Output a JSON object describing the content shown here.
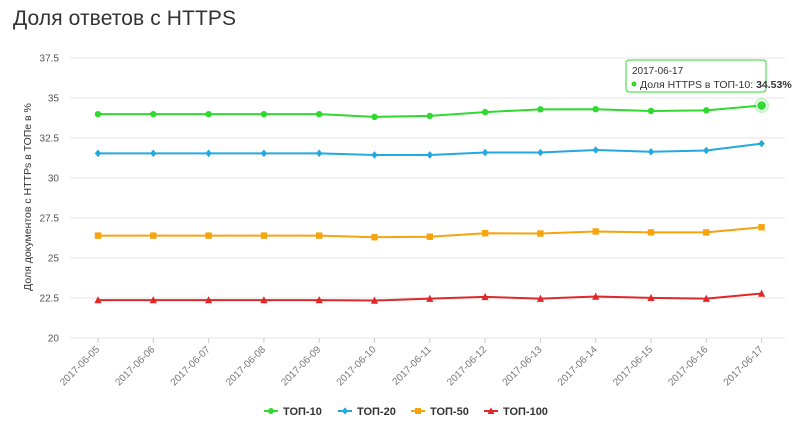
{
  "title": "Доля ответов с HTTPS",
  "chart_data": {
    "type": "line",
    "x": [
      "2017-06-05",
      "2017-06-06",
      "2017-06-07",
      "2017-06-08",
      "2017-06-09",
      "2017-06-10",
      "2017-06-11",
      "2017-06-12",
      "2017-06-13",
      "2017-06-14",
      "2017-06-15",
      "2017-06-16",
      "2017-06-17"
    ],
    "ylabel": "Доля документов с HTTPs в ТОПе в %",
    "ylim": [
      20,
      37.5
    ],
    "yticks": [
      "20",
      "22.5",
      "25",
      "27.5",
      "30",
      "32.5",
      "35",
      "37.5"
    ],
    "grid": true,
    "legend_position": "bottom",
    "series": [
      {
        "name": "ТОП-10",
        "color": "#2fd92f",
        "marker": "circle",
        "values": [
          33.99,
          33.99,
          33.99,
          33.99,
          33.99,
          33.82,
          33.88,
          34.12,
          34.29,
          34.3,
          34.19,
          34.23,
          34.53
        ]
      },
      {
        "name": "ТОП-20",
        "color": "#22a9e0",
        "marker": "diamond",
        "values": [
          31.54,
          31.54,
          31.54,
          31.54,
          31.54,
          31.44,
          31.44,
          31.59,
          31.59,
          31.75,
          31.64,
          31.72,
          32.15
        ]
      },
      {
        "name": "ТОП-50",
        "color": "#f5a40e",
        "marker": "square",
        "values": [
          26.4,
          26.4,
          26.4,
          26.4,
          26.4,
          26.3,
          26.33,
          26.55,
          26.53,
          26.66,
          26.6,
          26.6,
          26.92
        ]
      },
      {
        "name": "ТОП-100",
        "color": "#e0282a",
        "marker": "triangle",
        "values": [
          22.37,
          22.37,
          22.37,
          22.37,
          22.37,
          22.34,
          22.46,
          22.57,
          22.46,
          22.59,
          22.51,
          22.46,
          22.78
        ]
      }
    ],
    "tooltip": {
      "date": "2017-06-17",
      "label": "Доля HTTPS в ТОП-10: ",
      "value": "34.53%"
    }
  }
}
